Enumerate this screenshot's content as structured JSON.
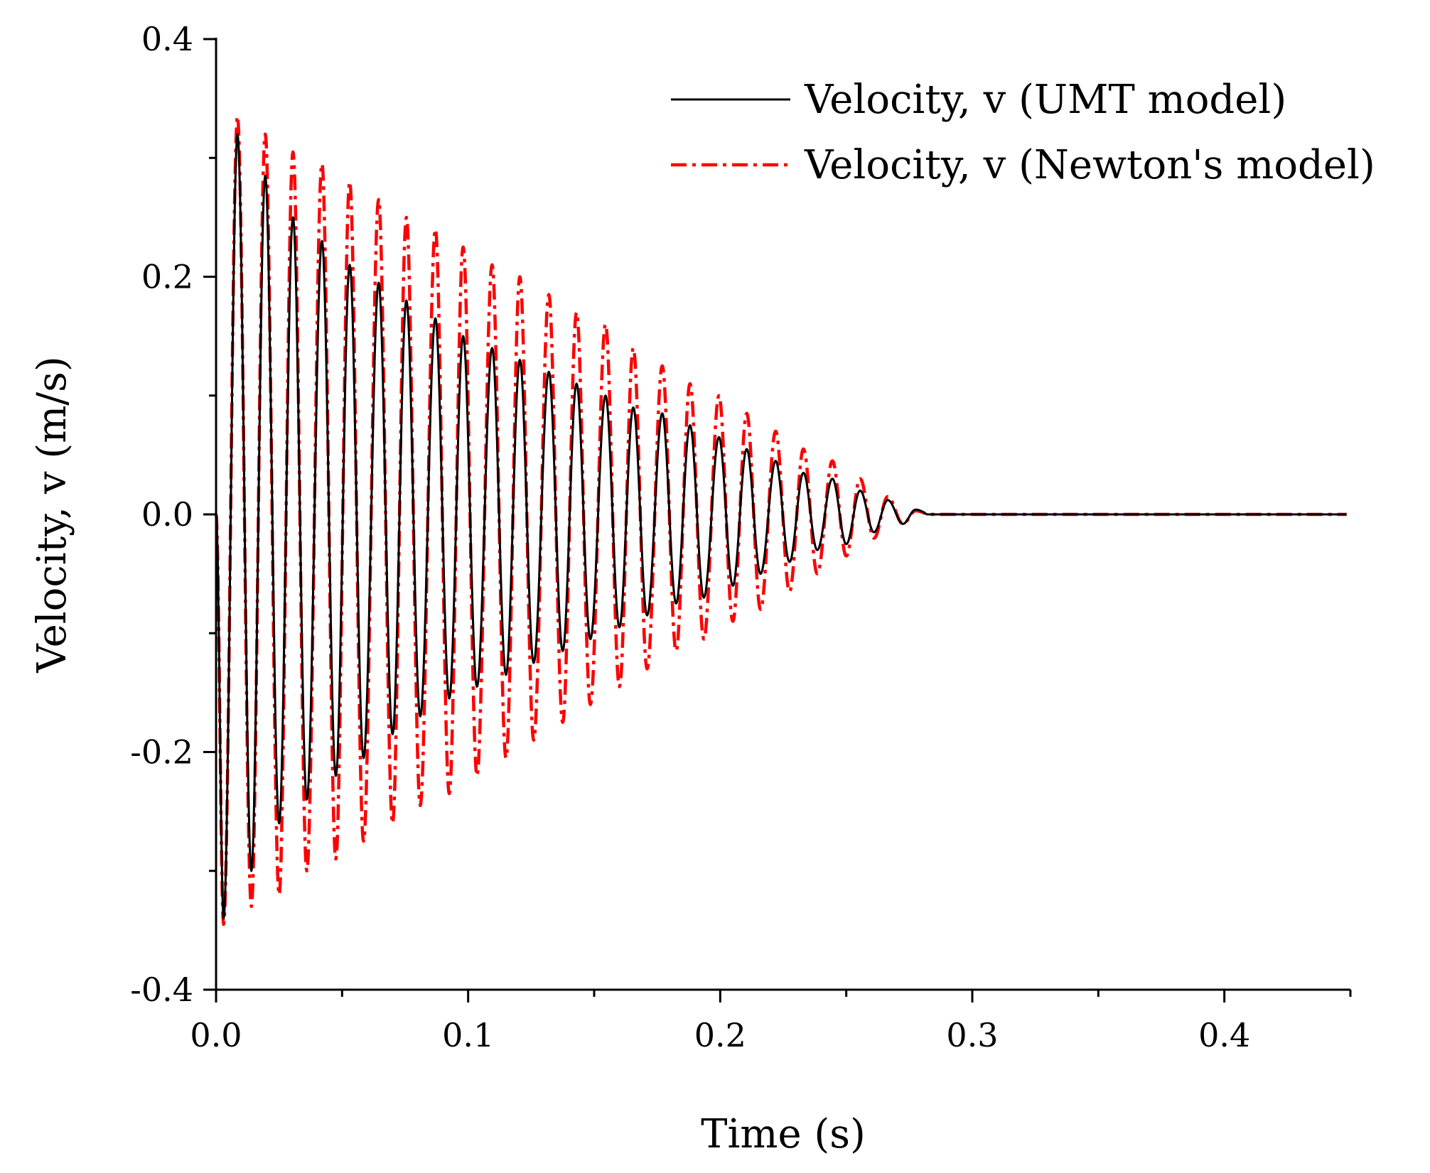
{
  "chart_data": {
    "type": "line",
    "title": "",
    "xlabel": "Time (s)",
    "ylabel": "Velocity, v (m/s)",
    "xlim": [
      0,
      0.45
    ],
    "ylim": [
      -0.4,
      0.4
    ],
    "x_major_ticks": [
      0.0,
      0.1,
      0.2,
      0.3,
      0.4
    ],
    "x_tick_labels": [
      "0.0",
      "0.1",
      "0.2",
      "0.3",
      "0.4"
    ],
    "x_minor_ticks": [
      0.05,
      0.15,
      0.25,
      0.35,
      0.45
    ],
    "y_major_ticks": [
      -0.4,
      -0.2,
      0.0,
      0.2,
      0.4
    ],
    "y_tick_labels": [
      "-0.4",
      "-0.2",
      "0.0",
      "0.2",
      "0.4"
    ],
    "y_minor_ticks": [
      -0.3,
      -0.1,
      0.1,
      0.3
    ],
    "grid": false,
    "legend_position": "top-right",
    "series": [
      {
        "name": "Velocity, v (UMT model)",
        "color": "#000000",
        "style": "solid",
        "period": 0.01125,
        "end_time": 0.282,
        "peaks": [
          {
            "t": 0.0085,
            "v": 0.32
          },
          {
            "t": 0.0195,
            "v": 0.285
          },
          {
            "t": 0.0305,
            "v": 0.25
          },
          {
            "t": 0.042,
            "v": 0.23
          },
          {
            "t": 0.053,
            "v": 0.21
          },
          {
            "t": 0.0645,
            "v": 0.195
          },
          {
            "t": 0.0755,
            "v": 0.18
          },
          {
            "t": 0.087,
            "v": 0.165
          },
          {
            "t": 0.098,
            "v": 0.15
          },
          {
            "t": 0.1095,
            "v": 0.14
          },
          {
            "t": 0.1205,
            "v": 0.13
          },
          {
            "t": 0.132,
            "v": 0.12
          },
          {
            "t": 0.143,
            "v": 0.11
          },
          {
            "t": 0.1545,
            "v": 0.1
          },
          {
            "t": 0.1655,
            "v": 0.09
          },
          {
            "t": 0.177,
            "v": 0.085
          },
          {
            "t": 0.188,
            "v": 0.075
          },
          {
            "t": 0.1995,
            "v": 0.065
          },
          {
            "t": 0.2105,
            "v": 0.055
          },
          {
            "t": 0.222,
            "v": 0.045
          },
          {
            "t": 0.233,
            "v": 0.035
          },
          {
            "t": 0.2445,
            "v": 0.03
          },
          {
            "t": 0.2555,
            "v": 0.02
          },
          {
            "t": 0.2665,
            "v": 0.012
          },
          {
            "t": 0.2775,
            "v": 0.004
          }
        ],
        "troughs": [
          {
            "t": 0.003,
            "v": -0.34
          },
          {
            "t": 0.014,
            "v": -0.3
          },
          {
            "t": 0.025,
            "v": -0.26
          },
          {
            "t": 0.036,
            "v": -0.24
          },
          {
            "t": 0.0475,
            "v": -0.22
          },
          {
            "t": 0.0585,
            "v": -0.205
          },
          {
            "t": 0.07,
            "v": -0.185
          },
          {
            "t": 0.081,
            "v": -0.17
          },
          {
            "t": 0.0925,
            "v": -0.155
          },
          {
            "t": 0.1035,
            "v": -0.145
          },
          {
            "t": 0.115,
            "v": -0.135
          },
          {
            "t": 0.126,
            "v": -0.125
          },
          {
            "t": 0.1375,
            "v": -0.115
          },
          {
            "t": 0.1485,
            "v": -0.105
          },
          {
            "t": 0.16,
            "v": -0.095
          },
          {
            "t": 0.171,
            "v": -0.085
          },
          {
            "t": 0.1825,
            "v": -0.075
          },
          {
            "t": 0.1935,
            "v": -0.07
          },
          {
            "t": 0.205,
            "v": -0.06
          },
          {
            "t": 0.216,
            "v": -0.05
          },
          {
            "t": 0.2275,
            "v": -0.04
          },
          {
            "t": 0.2385,
            "v": -0.03
          },
          {
            "t": 0.25,
            "v": -0.025
          },
          {
            "t": 0.261,
            "v": -0.015
          },
          {
            "t": 0.2725,
            "v": -0.008
          }
        ]
      },
      {
        "name": "Velocity, v (Newton's model)",
        "color": "#ff0000",
        "style": "dash-dot",
        "period": 0.01125,
        "end_time": 0.282,
        "peaks": [
          {
            "t": 0.0085,
            "v": 0.335
          },
          {
            "t": 0.0195,
            "v": 0.32
          },
          {
            "t": 0.0305,
            "v": 0.305
          },
          {
            "t": 0.042,
            "v": 0.295
          },
          {
            "t": 0.053,
            "v": 0.28
          },
          {
            "t": 0.0645,
            "v": 0.265
          },
          {
            "t": 0.0755,
            "v": 0.25
          },
          {
            "t": 0.087,
            "v": 0.24
          },
          {
            "t": 0.098,
            "v": 0.225
          },
          {
            "t": 0.1095,
            "v": 0.21
          },
          {
            "t": 0.1205,
            "v": 0.2
          },
          {
            "t": 0.132,
            "v": 0.185
          },
          {
            "t": 0.143,
            "v": 0.17
          },
          {
            "t": 0.1545,
            "v": 0.16
          },
          {
            "t": 0.1655,
            "v": 0.14
          },
          {
            "t": 0.177,
            "v": 0.125
          },
          {
            "t": 0.188,
            "v": 0.11
          },
          {
            "t": 0.1995,
            "v": 0.1
          },
          {
            "t": 0.2105,
            "v": 0.085
          },
          {
            "t": 0.222,
            "v": 0.07
          },
          {
            "t": 0.233,
            "v": 0.055
          },
          {
            "t": 0.2445,
            "v": 0.045
          },
          {
            "t": 0.2555,
            "v": 0.03
          },
          {
            "t": 0.2665,
            "v": 0.015
          },
          {
            "t": 0.2775,
            "v": 0.003
          }
        ],
        "troughs": [
          {
            "t": 0.003,
            "v": -0.345
          },
          {
            "t": 0.014,
            "v": -0.33
          },
          {
            "t": 0.025,
            "v": -0.32
          },
          {
            "t": 0.036,
            "v": -0.3
          },
          {
            "t": 0.0475,
            "v": -0.29
          },
          {
            "t": 0.0585,
            "v": -0.275
          },
          {
            "t": 0.07,
            "v": -0.26
          },
          {
            "t": 0.081,
            "v": -0.245
          },
          {
            "t": 0.0925,
            "v": -0.235
          },
          {
            "t": 0.1035,
            "v": -0.22
          },
          {
            "t": 0.115,
            "v": -0.205
          },
          {
            "t": 0.126,
            "v": -0.19
          },
          {
            "t": 0.1375,
            "v": -0.175
          },
          {
            "t": 0.1485,
            "v": -0.16
          },
          {
            "t": 0.16,
            "v": -0.145
          },
          {
            "t": 0.171,
            "v": -0.13
          },
          {
            "t": 0.1825,
            "v": -0.115
          },
          {
            "t": 0.1935,
            "v": -0.105
          },
          {
            "t": 0.205,
            "v": -0.09
          },
          {
            "t": 0.216,
            "v": -0.08
          },
          {
            "t": 0.2275,
            "v": -0.065
          },
          {
            "t": 0.2385,
            "v": -0.05
          },
          {
            "t": 0.25,
            "v": -0.035
          },
          {
            "t": 0.261,
            "v": -0.02
          },
          {
            "t": 0.2725,
            "v": -0.008
          }
        ]
      }
    ]
  }
}
